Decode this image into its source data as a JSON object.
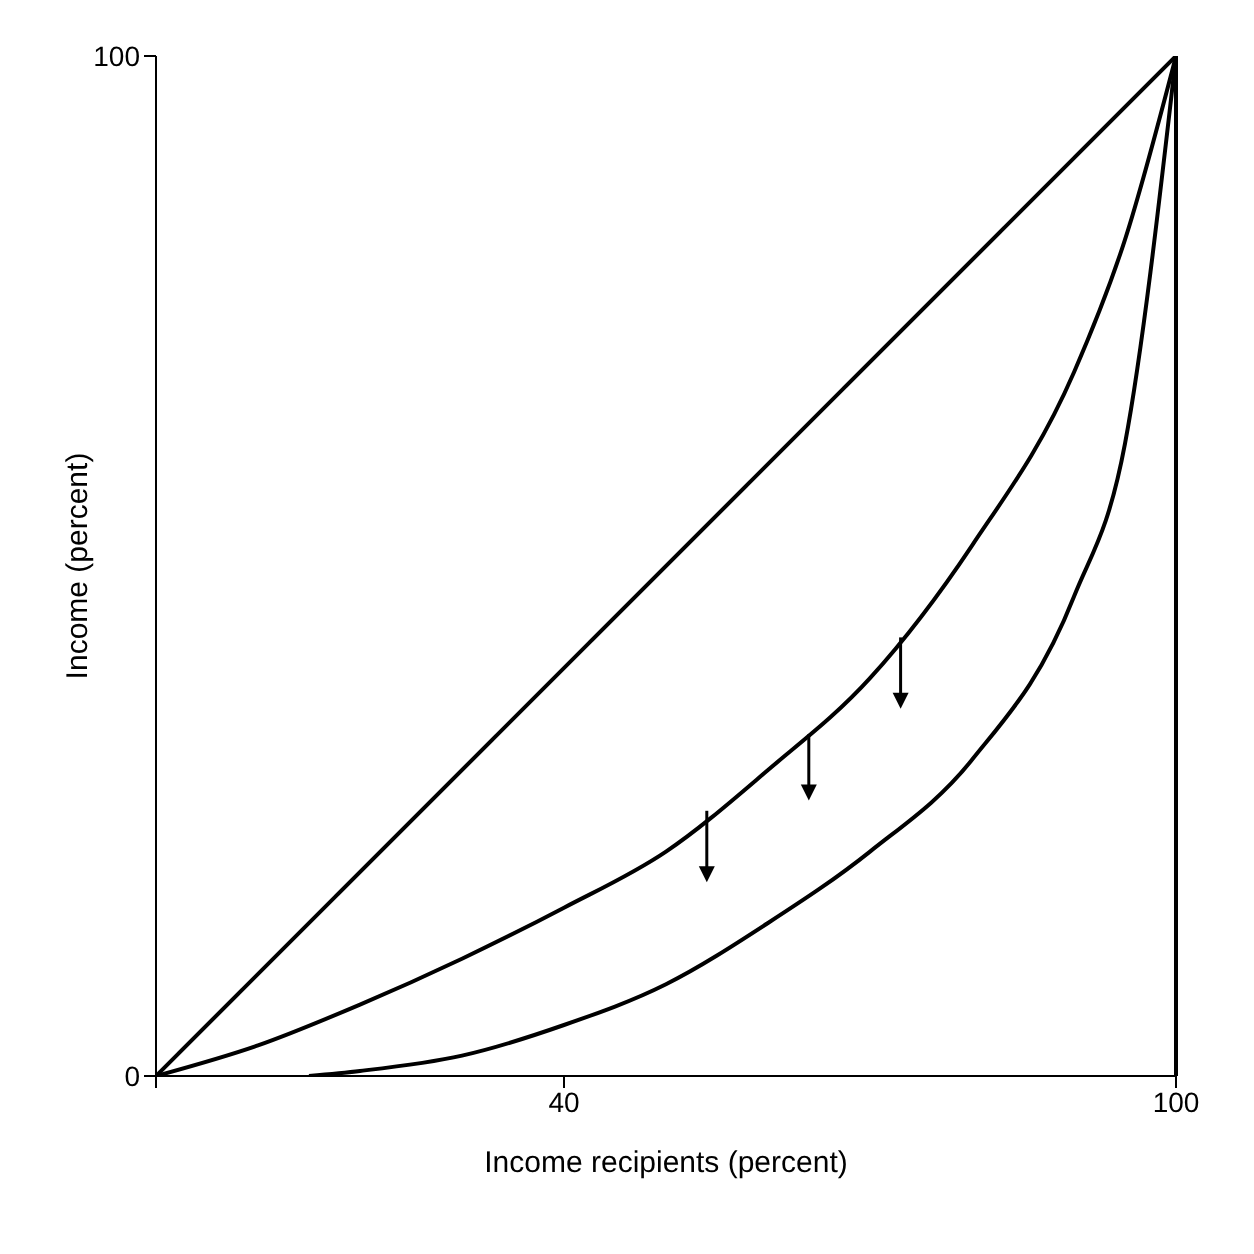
{
  "chart_data": {
    "type": "line",
    "xlabel": "Income recipients (percent)",
    "ylabel": "Income (percent)",
    "xlim": [
      0,
      100
    ],
    "xticks": [
      {
        "value": 0,
        "label": null
      },
      40,
      100
    ],
    "ylim": [
      0,
      100
    ],
    "yticks": [
      0,
      100
    ],
    "grid": false,
    "legend": false,
    "marker": "none",
    "line_style": "solid",
    "series": [
      {
        "color": "#000000",
        "x": [
          0,
          100
        ],
        "values": [
          0,
          100
        ]
      },
      {
        "color": "#000000",
        "x": [
          0,
          10,
          20,
          30,
          40,
          50,
          60,
          70,
          80,
          90,
          95,
          100
        ],
        "values": [
          0,
          3,
          7,
          11.5,
          16.5,
          22,
          30,
          39,
          52,
          69,
          82,
          100
        ]
      },
      {
        "color": "#000000",
        "x": [
          15,
          20,
          30,
          40,
          50,
          60,
          70,
          80,
          90,
          95,
          100
        ],
        "values": [
          0,
          0.5,
          2,
          5,
          9,
          15,
          22,
          31,
          47,
          62,
          100
        ]
      }
    ],
    "ref_lines": [
      {
        "axis": "x",
        "value": 100,
        "color": "#000000"
      }
    ]
  }
}
